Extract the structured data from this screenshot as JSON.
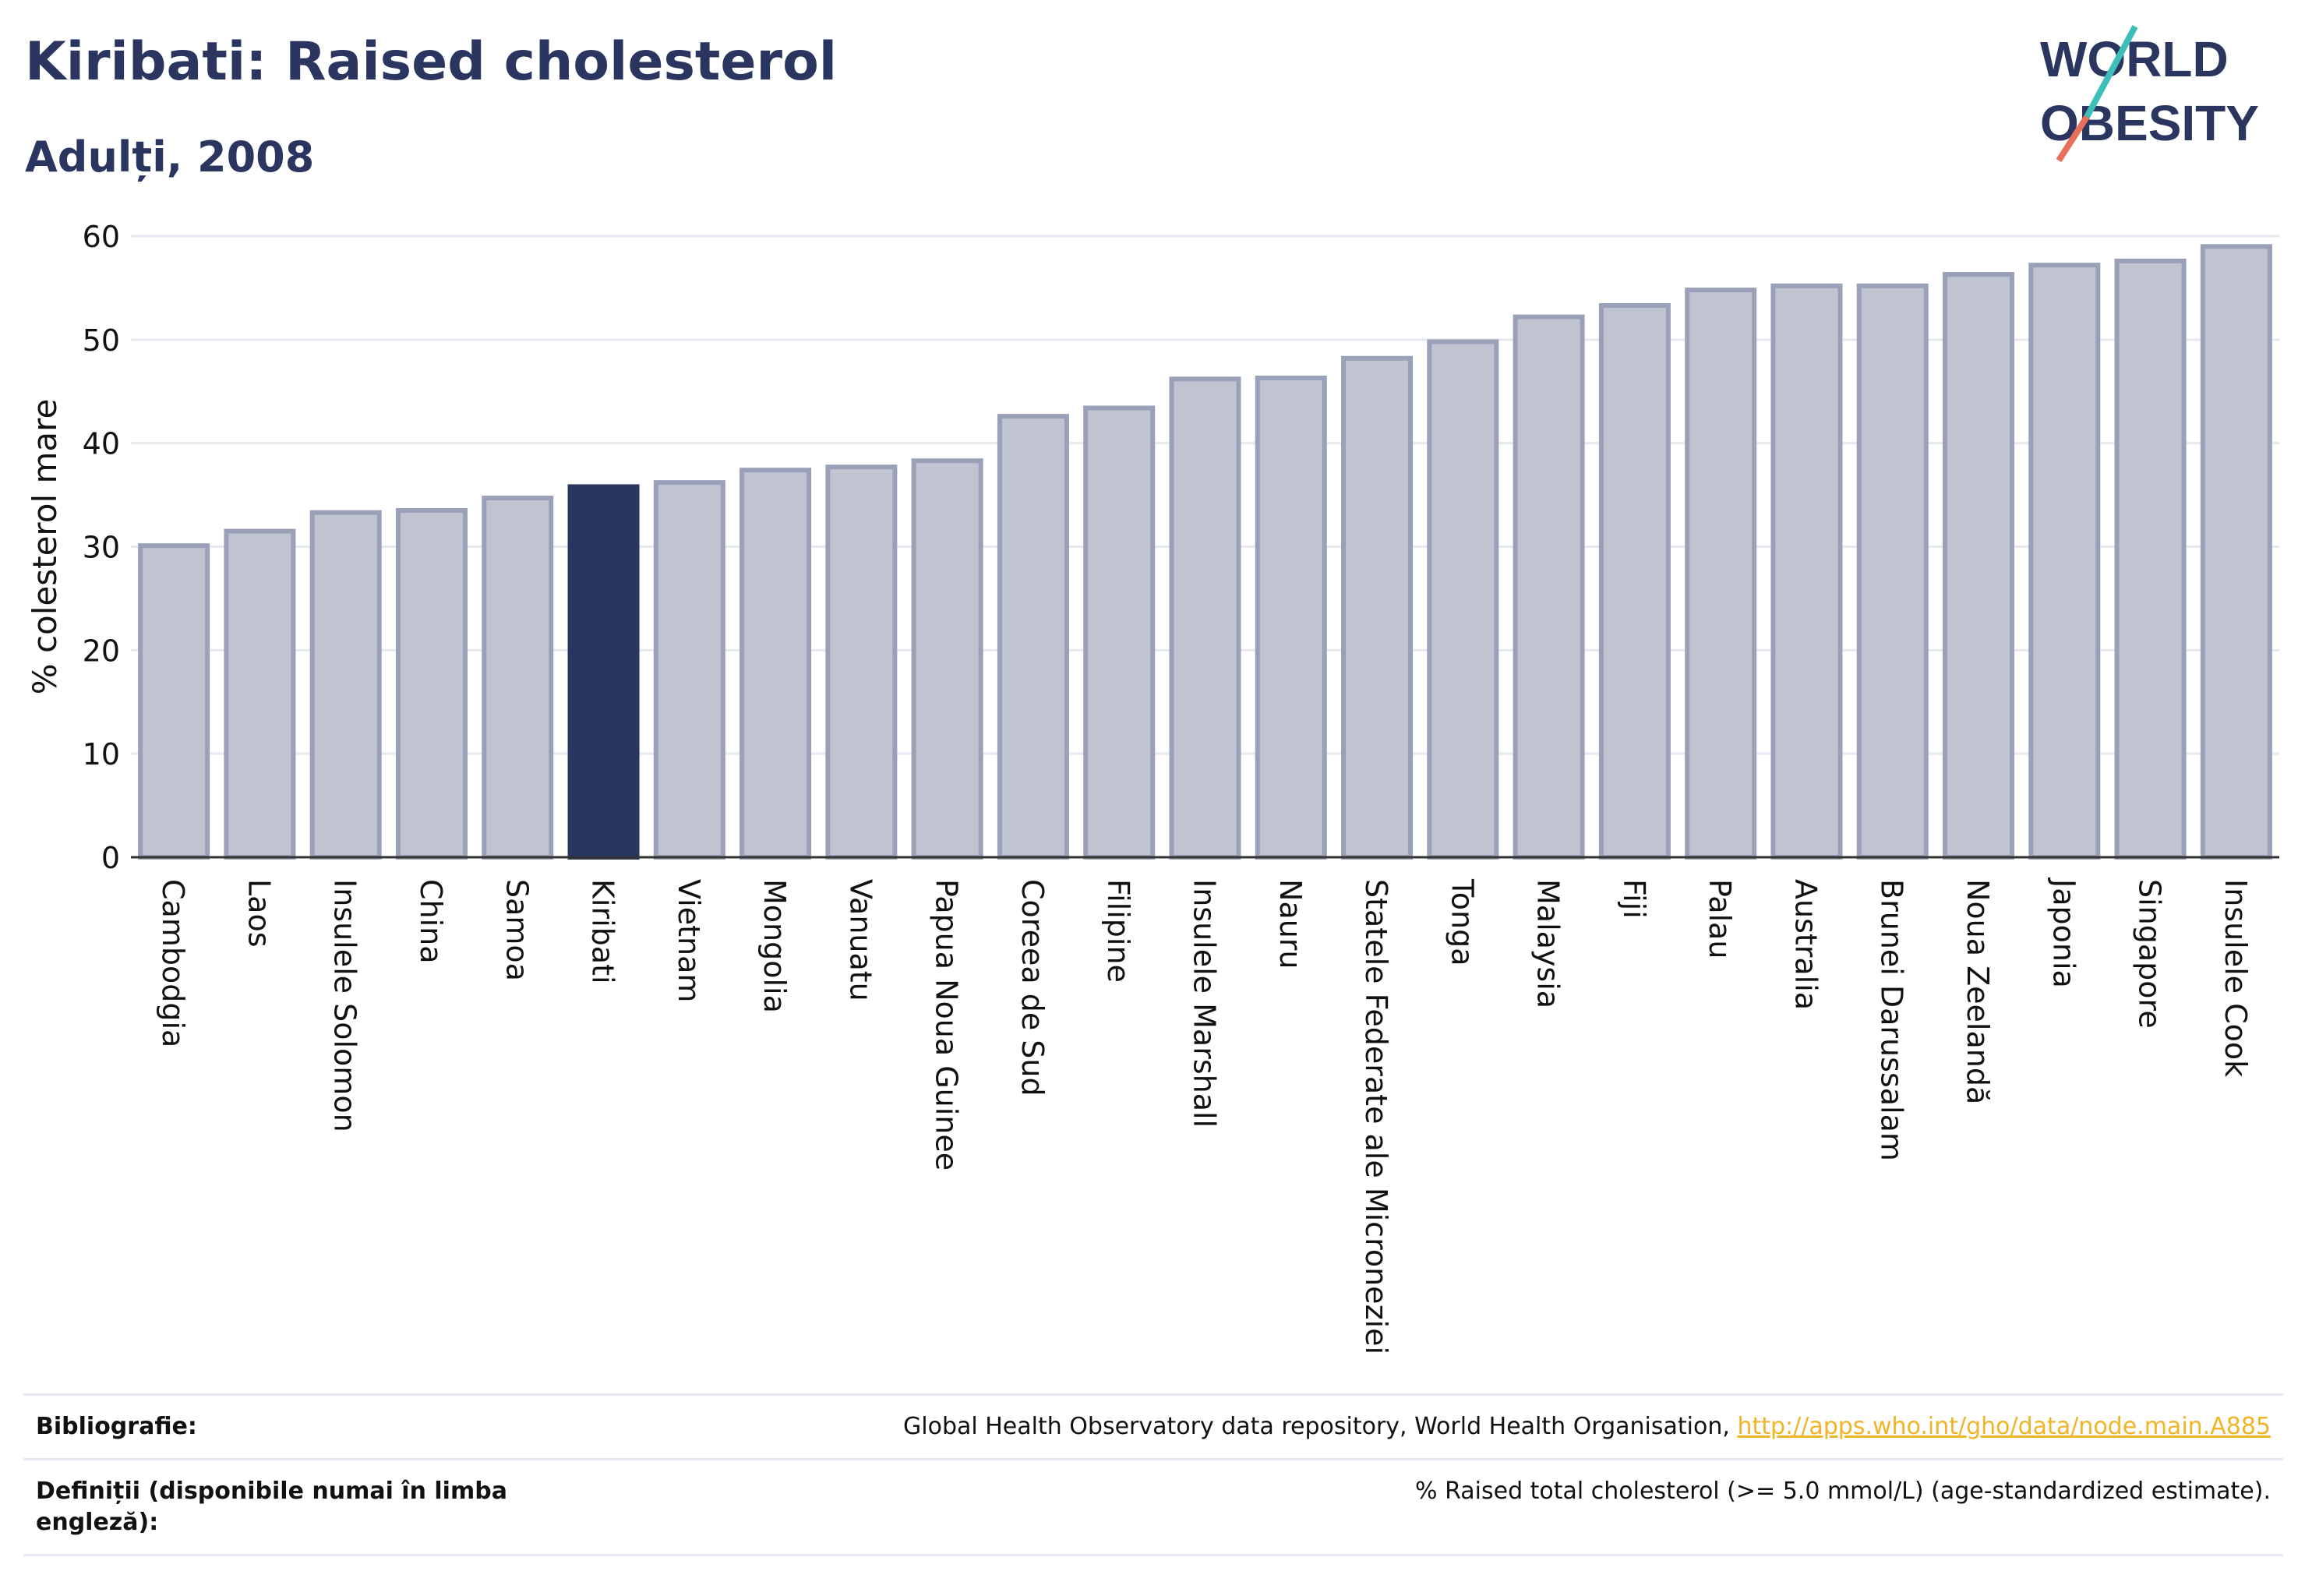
{
  "title": "Kiribati: Raised cholesterol",
  "subtitle": "Adulți, 2008",
  "logo": {
    "line1": "WORLD",
    "line2": "OBESITY"
  },
  "colors": {
    "highlight": "#2a3560",
    "bar": "#c0c3d0",
    "bar_stroke": "#9aa0b8",
    "grid": "#e6e8f0",
    "link": "#f0b429"
  },
  "chart_data": {
    "type": "bar",
    "ylabel": "% colesterol mare",
    "ylim": [
      0,
      60
    ],
    "yticks": [
      0,
      10,
      20,
      30,
      40,
      50,
      60
    ],
    "grid": true,
    "highlight": "Kiribati",
    "categories": [
      "Cambodgia",
      "Laos",
      "Insulele Solomon",
      "China",
      "Samoa",
      "Kiribati",
      "Vietnam",
      "Mongolia",
      "Vanuatu",
      "Papua Noua Guinee",
      "Coreea de Sud",
      "Filipine",
      "Insulele Marshall",
      "Nauru",
      "Statele Federate ale Microneziei",
      "Tonga",
      "Malaysia",
      "Fiji",
      "Palau",
      "Australia",
      "Brunei Darussalam",
      "Noua Zeelandă",
      "Japonia",
      "Singapore",
      "Insulele Cook"
    ],
    "values": [
      30.1,
      31.5,
      33.3,
      33.5,
      34.7,
      35.8,
      36.2,
      37.4,
      37.7,
      38.3,
      42.6,
      43.4,
      46.2,
      46.3,
      48.2,
      49.8,
      52.2,
      53.3,
      54.8,
      55.2,
      55.2,
      56.3,
      57.2,
      57.6,
      59.0
    ]
  },
  "references": {
    "bibliography_label": "Bibliografie:",
    "bibliography_text": "Global Health Observatory data repository, World Health Organisation, ",
    "bibliography_link": "http://apps.who.int/gho/data/node.main.A885",
    "definitions_label_1": "Definiții (disponibile numai în limba",
    "definitions_label_2": "engleză):",
    "definitions_text": "% Raised total cholesterol (>= 5.0 mmol/L) (age-standardized estimate)."
  }
}
